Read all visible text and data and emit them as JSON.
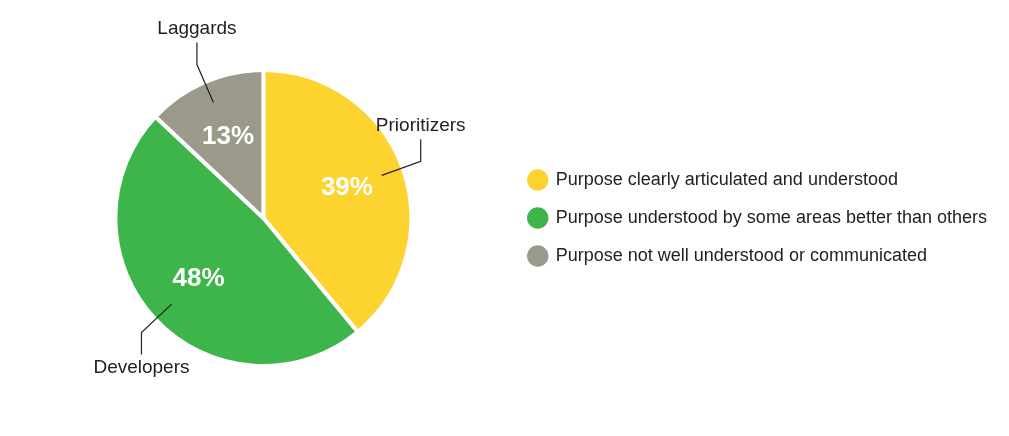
{
  "chart_data": {
    "type": "pie",
    "categories": [
      "Purpose clearly articulated and understood",
      "Purpose understood by some areas better than others",
      "Purpose not well understood or communicated"
    ],
    "values": [
      39,
      48,
      13
    ],
    "colors": [
      "#fdd42f",
      "#3db54a",
      "#9a998a"
    ],
    "value_labels": [
      "39%",
      "48%",
      "13%"
    ],
    "annotations": [
      {
        "text": "Prioritizers",
        "x": "Purpose clearly articulated and understood"
      },
      {
        "text": "Developers",
        "x": "Purpose understood by some areas better than others"
      },
      {
        "text": "Laggards",
        "x": "Purpose not well understood or communicated"
      }
    ],
    "legend": "right"
  }
}
